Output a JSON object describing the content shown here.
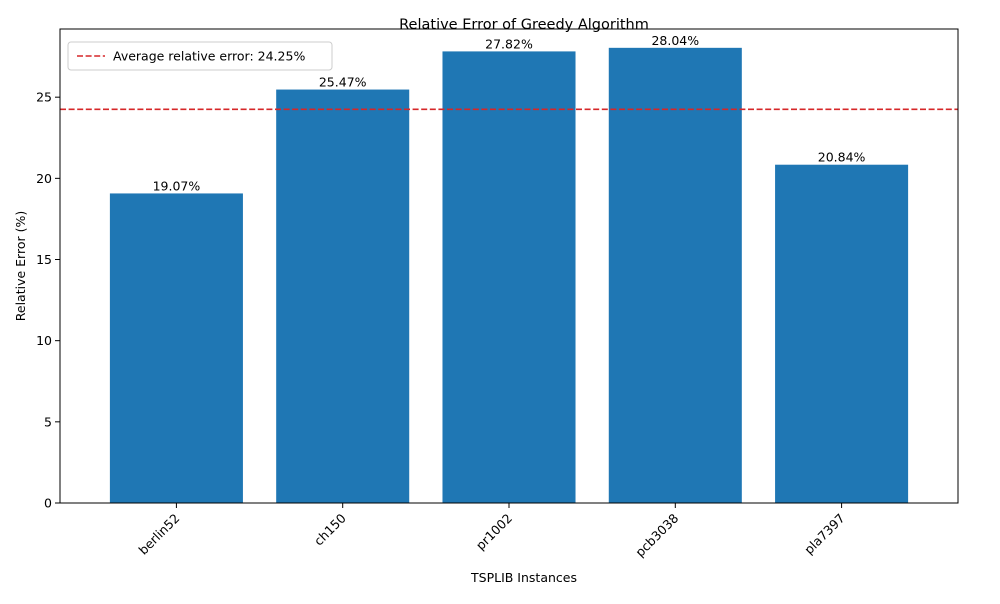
{
  "chart_data": {
    "type": "bar",
    "title": "Relative Error of Greedy Algorithm",
    "xlabel": "TSPLIB Instances",
    "ylabel": "Relative Error (%)",
    "categories": [
      "berlin52",
      "ch150",
      "pr1002",
      "pcb3038",
      "pla7397"
    ],
    "values": [
      19.07,
      25.47,
      27.82,
      28.04,
      20.84
    ],
    "value_labels": [
      "19.07%",
      "25.47%",
      "27.82%",
      "28.04%",
      "20.84%"
    ],
    "ylim": [
      0,
      29.2
    ],
    "yticks": [
      0,
      5,
      10,
      15,
      20,
      25
    ],
    "grid": false,
    "bar_color": "#1f77b4",
    "reference_line": {
      "value": 24.25,
      "label": "Average relative error: 24.25%",
      "color": "#d62728",
      "style": "dashed"
    },
    "legend": {
      "placement": "top-left"
    }
  }
}
